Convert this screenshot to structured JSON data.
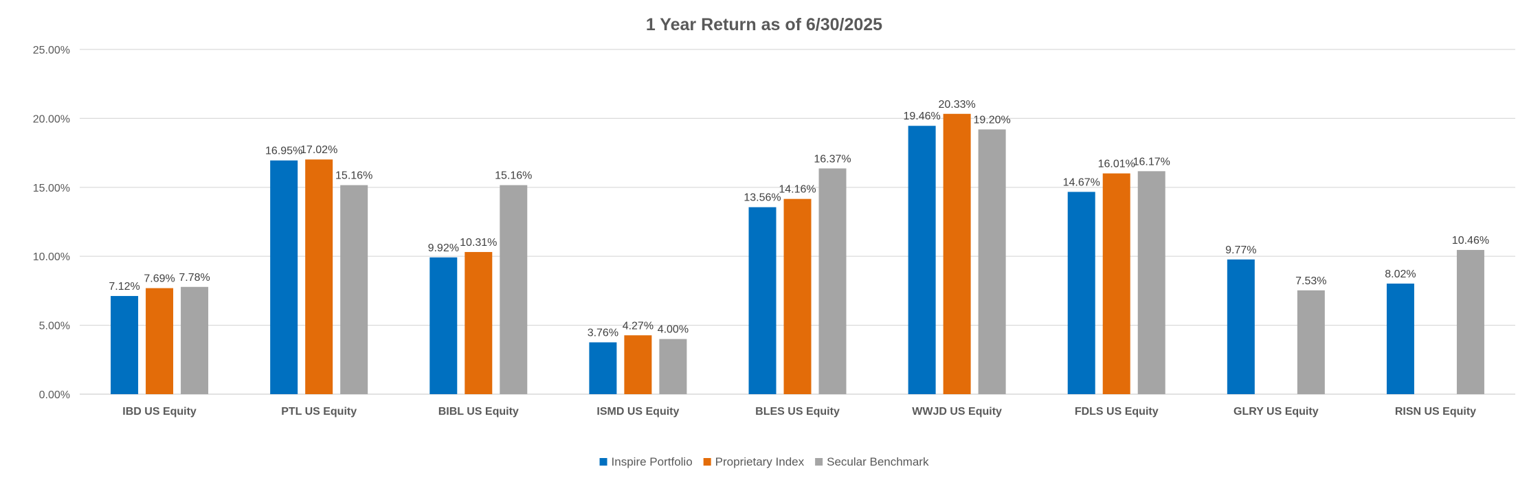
{
  "chart_data": {
    "type": "bar",
    "title": "1 Year Return as of 6/30/2025",
    "xlabel": "",
    "ylabel": "",
    "ylim": [
      0,
      25
    ],
    "yticks": [
      "0.00%",
      "5.00%",
      "10.00%",
      "15.00%",
      "20.00%",
      "25.00%"
    ],
    "grid": true,
    "legend_position": "bottom",
    "categories": [
      "IBD US Equity",
      "PTL US Equity",
      "BIBL US Equity",
      "ISMD US Equity",
      "BLES US Equity",
      "WWJD US Equity",
      "FDLS US Equity",
      "GLRY US Equity",
      "RISN US Equity"
    ],
    "series": [
      {
        "name": "Inspire Portfolio",
        "color": "#0070C0",
        "values": [
          7.12,
          16.95,
          9.92,
          3.76,
          13.56,
          19.46,
          14.67,
          9.77,
          8.02
        ],
        "labels": [
          "7.12%",
          "16.95%",
          "9.92%",
          "3.76%",
          "13.56%",
          "19.46%",
          "14.67%",
          "9.77%",
          "8.02%"
        ]
      },
      {
        "name": "Proprietary Index",
        "color": "#E36C09",
        "values": [
          7.69,
          17.02,
          10.31,
          4.27,
          14.16,
          20.33,
          16.01,
          null,
          null
        ],
        "labels": [
          "7.69%",
          "17.02%",
          "10.31%",
          "4.27%",
          "14.16%",
          "20.33%",
          "16.01%",
          null,
          null
        ]
      },
      {
        "name": "Secular Benchmark",
        "color": "#A5A5A5",
        "values": [
          7.78,
          15.16,
          15.16,
          4.0,
          16.37,
          19.2,
          16.17,
          7.53,
          10.46
        ],
        "labels": [
          "7.78%",
          "15.16%",
          "15.16%",
          "4.00%",
          "16.37%",
          "19.20%",
          "16.17%",
          "7.53%",
          "10.46%"
        ]
      }
    ]
  }
}
